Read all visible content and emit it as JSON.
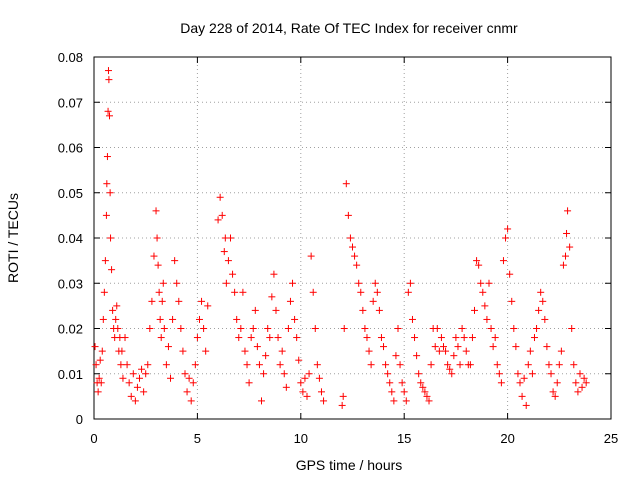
{
  "chart_data": {
    "type": "scatter",
    "title": "Day 228 of 2014, Rate Of TEC Index for receiver cnmr",
    "xlabel": "GPS time / hours",
    "ylabel": "ROTI / TECUs",
    "xlim": [
      0,
      25
    ],
    "ylim": [
      0,
      0.08
    ],
    "xticks": [
      0,
      5,
      10,
      15,
      20,
      25
    ],
    "yticks": [
      0,
      0.01,
      0.02,
      0.03,
      0.04,
      0.05,
      0.06,
      0.07,
      0.08
    ],
    "xtick_labels": [
      "0",
      "5",
      "10",
      "15",
      "20",
      "25"
    ],
    "ytick_labels": [
      "0",
      "0.01",
      "0.02",
      "0.03",
      "0.04",
      "0.05",
      "0.06",
      "0.07",
      "0.08"
    ],
    "grid": true,
    "marker": "+",
    "marker_color": "#ff0000",
    "series": [
      {
        "name": "ROTI",
        "x": [
          0.05,
          0.1,
          0.15,
          0.2,
          0.25,
          0.3,
          0.35,
          0.4,
          0.45,
          0.5,
          0.55,
          0.6,
          0.62,
          0.65,
          0.68,
          0.7,
          0.72,
          0.75,
          0.78,
          0.8,
          0.85,
          0.9,
          0.95,
          1.0,
          1.05,
          1.1,
          1.15,
          1.2,
          1.25,
          1.3,
          1.35,
          1.4,
          1.5,
          1.6,
          1.7,
          1.8,
          1.9,
          2.0,
          2.1,
          2.2,
          2.3,
          2.4,
          2.5,
          2.6,
          2.7,
          2.8,
          2.9,
          3.0,
          3.05,
          3.1,
          3.15,
          3.2,
          3.25,
          3.3,
          3.35,
          3.4,
          3.5,
          3.6,
          3.7,
          3.8,
          3.9,
          4.0,
          4.1,
          4.2,
          4.3,
          4.4,
          4.5,
          4.6,
          4.7,
          4.8,
          4.9,
          5.0,
          5.1,
          5.2,
          5.3,
          5.4,
          5.5,
          6.0,
          6.1,
          6.2,
          6.3,
          6.35,
          6.4,
          6.5,
          6.6,
          6.7,
          6.8,
          6.9,
          7.0,
          7.1,
          7.2,
          7.3,
          7.4,
          7.5,
          7.6,
          7.7,
          7.8,
          7.9,
          8.0,
          8.1,
          8.2,
          8.3,
          8.4,
          8.5,
          8.6,
          8.7,
          8.8,
          8.9,
          9.0,
          9.1,
          9.2,
          9.3,
          9.4,
          9.5,
          9.6,
          9.7,
          9.8,
          9.9,
          10.0,
          10.1,
          10.2,
          10.3,
          10.4,
          10.5,
          10.6,
          10.7,
          10.8,
          10.9,
          11.0,
          11.1,
          12.0,
          12.05,
          12.1,
          12.2,
          12.3,
          12.4,
          12.5,
          12.6,
          12.7,
          12.8,
          12.9,
          13.0,
          13.1,
          13.2,
          13.3,
          13.4,
          13.5,
          13.6,
          13.7,
          13.8,
          13.9,
          14.0,
          14.1,
          14.2,
          14.3,
          14.4,
          14.5,
          14.6,
          14.7,
          14.8,
          14.9,
          15.0,
          15.1,
          15.2,
          15.3,
          15.4,
          15.5,
          15.6,
          15.7,
          15.8,
          15.9,
          16.0,
          16.1,
          16.2,
          16.3,
          16.4,
          16.5,
          16.6,
          16.7,
          16.8,
          16.9,
          17.0,
          17.1,
          17.2,
          17.3,
          17.4,
          17.5,
          17.6,
          17.7,
          17.8,
          17.9,
          18.0,
          18.1,
          18.2,
          18.3,
          18.4,
          18.5,
          18.6,
          18.7,
          18.8,
          18.9,
          19.0,
          19.1,
          19.2,
          19.3,
          19.4,
          19.5,
          19.6,
          19.7,
          19.8,
          19.9,
          20.0,
          20.1,
          20.2,
          20.3,
          20.4,
          20.5,
          20.6,
          20.7,
          20.8,
          20.9,
          21.0,
          21.1,
          21.2,
          21.3,
          21.4,
          21.5,
          21.6,
          21.7,
          21.8,
          21.9,
          22.0,
          22.1,
          22.2,
          22.3,
          22.4,
          22.5,
          22.6,
          22.7,
          22.8,
          22.85,
          22.9,
          23.0,
          23.1,
          23.2,
          23.3,
          23.4,
          23.5,
          23.6,
          23.7,
          23.8
        ],
        "y": [
          0.016,
          0.012,
          0.008,
          0.006,
          0.009,
          0.013,
          0.008,
          0.015,
          0.022,
          0.028,
          0.035,
          0.045,
          0.052,
          0.058,
          0.068,
          0.077,
          0.075,
          0.067,
          0.05,
          0.04,
          0.033,
          0.024,
          0.02,
          0.018,
          0.022,
          0.025,
          0.02,
          0.015,
          0.018,
          0.012,
          0.015,
          0.009,
          0.018,
          0.012,
          0.008,
          0.005,
          0.01,
          0.004,
          0.007,
          0.009,
          0.011,
          0.006,
          0.01,
          0.012,
          0.02,
          0.026,
          0.036,
          0.046,
          0.04,
          0.034,
          0.028,
          0.022,
          0.018,
          0.026,
          0.03,
          0.02,
          0.012,
          0.016,
          0.009,
          0.022,
          0.035,
          0.03,
          0.026,
          0.02,
          0.015,
          0.01,
          0.006,
          0.009,
          0.004,
          0.008,
          0.012,
          0.018,
          0.022,
          0.026,
          0.02,
          0.015,
          0.025,
          0.044,
          0.049,
          0.045,
          0.037,
          0.04,
          0.03,
          0.035,
          0.04,
          0.032,
          0.028,
          0.022,
          0.018,
          0.02,
          0.028,
          0.015,
          0.012,
          0.008,
          0.018,
          0.02,
          0.024,
          0.016,
          0.012,
          0.004,
          0.01,
          0.014,
          0.02,
          0.018,
          0.027,
          0.032,
          0.024,
          0.018,
          0.012,
          0.015,
          0.01,
          0.007,
          0.02,
          0.026,
          0.03,
          0.022,
          0.018,
          0.013,
          0.008,
          0.006,
          0.009,
          0.005,
          0.01,
          0.036,
          0.028,
          0.02,
          0.012,
          0.009,
          0.006,
          0.004,
          0.003,
          0.005,
          0.02,
          0.052,
          0.045,
          0.04,
          0.038,
          0.036,
          0.034,
          0.03,
          0.028,
          0.024,
          0.02,
          0.018,
          0.015,
          0.012,
          0.026,
          0.03,
          0.028,
          0.024,
          0.018,
          0.016,
          0.012,
          0.01,
          0.008,
          0.006,
          0.004,
          0.014,
          0.02,
          0.012,
          0.008,
          0.006,
          0.004,
          0.028,
          0.03,
          0.022,
          0.018,
          0.014,
          0.01,
          0.008,
          0.007,
          0.006,
          0.005,
          0.004,
          0.012,
          0.02,
          0.016,
          0.02,
          0.015,
          0.018,
          0.016,
          0.015,
          0.012,
          0.011,
          0.01,
          0.014,
          0.018,
          0.016,
          0.012,
          0.02,
          0.018,
          0.015,
          0.012,
          0.012,
          0.018,
          0.024,
          0.035,
          0.034,
          0.03,
          0.028,
          0.025,
          0.022,
          0.03,
          0.02,
          0.016,
          0.018,
          0.012,
          0.01,
          0.008,
          0.035,
          0.04,
          0.042,
          0.032,
          0.026,
          0.02,
          0.016,
          0.01,
          0.008,
          0.005,
          0.009,
          0.003,
          0.012,
          0.015,
          0.01,
          0.018,
          0.02,
          0.024,
          0.028,
          0.026,
          0.022,
          0.016,
          0.012,
          0.01,
          0.006,
          0.005,
          0.008,
          0.012,
          0.015,
          0.034,
          0.036,
          0.041,
          0.046,
          0.038,
          0.02,
          0.012,
          0.008,
          0.006,
          0.01,
          0.007,
          0.009,
          0.008
        ]
      }
    ]
  }
}
